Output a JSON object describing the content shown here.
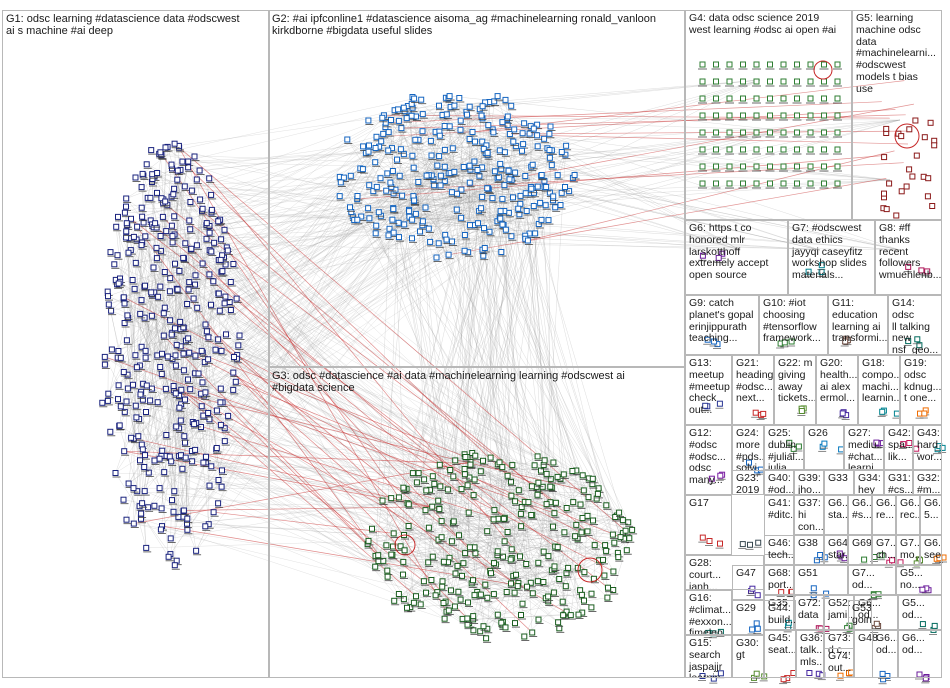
{
  "groups": [
    {
      "id": "G1",
      "text": "G1: odsc learning #datascience data #odscwest\nai s machine #ai deep"
    },
    {
      "id": "G2",
      "text": "G2: #ai ipfconline1 #datascience aisoma_ag #machinelearning ronald_vanloon\nkirkdborne #bigdata useful slides"
    },
    {
      "id": "G3",
      "text": "G3: odsc #datascience #ai data #machinelearning learning #odscwest ai\n#bigdata science"
    },
    {
      "id": "G4",
      "text": "G4: data odsc science 2019\nwest learning #odsc ai open #ai"
    },
    {
      "id": "G5",
      "text": "G5: learning\nmachine odsc\ndata\n#machinelearni...\n#odscwest\nmodels t bias\nuse"
    },
    {
      "id": "G6",
      "text": "G6: https t co\nhonored mlr\nlarskotthoff\nextremely accept\nopen source"
    },
    {
      "id": "G7",
      "text": "G7: #odscwest\ndata ethics\njayyqi caseyfitz\nworkshop slides\nmaterials..."
    },
    {
      "id": "G8",
      "text": "G8: #ff\nthanks\nrecent\nfollowers\nwmuehlenb..."
    },
    {
      "id": "G9",
      "text": "G9: catch\nplanet's gopal\nerinjippurath\nteaching..."
    },
    {
      "id": "G10",
      "text": "G10: #iot\nchoosing\n#tensorflow\nframework..."
    },
    {
      "id": "G11",
      "text": "G11:\neducation\nlearning ai\ntransformi..."
    },
    {
      "id": "G14",
      "text": "G14: odsc\nll talking\nnew\nnsf_geo..."
    },
    {
      "id": "G13",
      "text": "G13:\nmeetup\n#meetup\ncheck\nout..."
    },
    {
      "id": "G21",
      "text": "G21:\nheading\n#odsc...\nnext..."
    },
    {
      "id": "G22",
      "text": "G22: m\ngiving\naway\ntickets..."
    },
    {
      "id": "G20",
      "text": "G20:\nhealth...\nai alex\nermol..."
    },
    {
      "id": "G18",
      "text": "G18:\ncompo...\nmachi...\nlearnin..."
    },
    {
      "id": "G19",
      "text": "G19:\nodsc\nkdnug...\nt one..."
    },
    {
      "id": "G12",
      "text": "G12:\n#odsc\n#odsc...\nodsc\nmany..."
    },
    {
      "id": "G24",
      "text": "G24:\nmore\n#pds...\nsolvi..."
    },
    {
      "id": "G25",
      "text": "G25:\ndublin\n#julial...\njulia..."
    },
    {
      "id": "G26",
      "text": "G26"
    },
    {
      "id": "G27",
      "text": "G27:\nmediu...\n#chat...\nlearni..."
    },
    {
      "id": "G42",
      "text": "G42:\nspa...\nlik..."
    },
    {
      "id": "G43",
      "text": "G43:\nhard\nwor..."
    },
    {
      "id": "G23",
      "text": "G23:\n2019\nbarça\nport..."
    },
    {
      "id": "G40",
      "text": "G40:\n#od..."
    },
    {
      "id": "G39",
      "text": "G39:\njho...\ngoo..."
    },
    {
      "id": "G33",
      "text": "G33"
    },
    {
      "id": "G34",
      "text": "G34:\nhey\nods..."
    },
    {
      "id": "G31",
      "text": "G31:\n#cs...\naudi..."
    },
    {
      "id": "G32",
      "text": "G32:\n#m...\nthe..."
    },
    {
      "id": "G17",
      "text": "G17"
    },
    {
      "id": "G41",
      "text": "G41:\n#ditc..."
    },
    {
      "id": "G37",
      "text": "G37:\nhi\ncon..."
    },
    {
      "id": "G6x1",
      "text": "G6...\nsta..."
    },
    {
      "id": "G6x2",
      "text": "G6...\n#s..."
    },
    {
      "id": "G6x3",
      "text": "G6...\nre..."
    },
    {
      "id": "G6x4",
      "text": "G6...\nrec..."
    },
    {
      "id": "G6x5",
      "text": "G6...\n5..."
    },
    {
      "id": "G28",
      "text": "G28:\ncourt...\njanh..."
    },
    {
      "id": "G46",
      "text": "G46:\ntech..."
    },
    {
      "id": "G38",
      "text": "G38"
    },
    {
      "id": "G64",
      "text": "G64:\nstar..."
    },
    {
      "id": "G69",
      "text": "G69"
    },
    {
      "id": "G7x1",
      "text": "G7...\nch..."
    },
    {
      "id": "G7x2",
      "text": "G7...\nmo..."
    },
    {
      "id": "G6x6",
      "text": "G6...\nsee"
    },
    {
      "id": "G16",
      "text": "G16:\n#climat...\n#exxon...\nfimeleo..."
    },
    {
      "id": "G47",
      "text": "G47"
    },
    {
      "id": "G68",
      "text": "G68:\nport..."
    },
    {
      "id": "G51",
      "text": "G51"
    },
    {
      "id": "G7x3",
      "text": "G7...\nod..."
    },
    {
      "id": "G5x1",
      "text": "G5...\nno..."
    },
    {
      "id": "G29",
      "text": "G29"
    },
    {
      "id": "G35",
      "text": "G35"
    },
    {
      "id": "G72",
      "text": "G72:\ndata"
    },
    {
      "id": "G52",
      "text": "G52:\njami..."
    },
    {
      "id": "G6x7",
      "text": "G6...\nod..."
    },
    {
      "id": "G5x2",
      "text": "G5...\nod..."
    },
    {
      "id": "G44",
      "text": "G44:\nbuild..."
    },
    {
      "id": "G53",
      "text": "G53:\ngoin..."
    },
    {
      "id": "G15",
      "text": "G15:\nsearch\njaspajjr\nlearnin..."
    },
    {
      "id": "G30",
      "text": "G30:\ngt"
    },
    {
      "id": "G45",
      "text": "G45:\nseat..."
    },
    {
      "id": "G36",
      "text": "G36:\ntalk...\nmls..."
    },
    {
      "id": "G73",
      "text": "G73:\nd c..."
    },
    {
      "id": "G74",
      "text": "G74:\nout..."
    },
    {
      "id": "G48",
      "text": "G48"
    },
    {
      "id": "G6x8",
      "text": "G6...\nod..."
    },
    {
      "id": "G6x9",
      "text": "G6...\nod..."
    }
  ],
  "colors": {
    "g1": "#1a237e",
    "g2": "#1565c0",
    "g3": "#1b5e20",
    "g4": "#2e7d32",
    "g5": "#8b1a1a",
    "edge": "#9a9a9a",
    "red_edge": "#c62828"
  }
}
